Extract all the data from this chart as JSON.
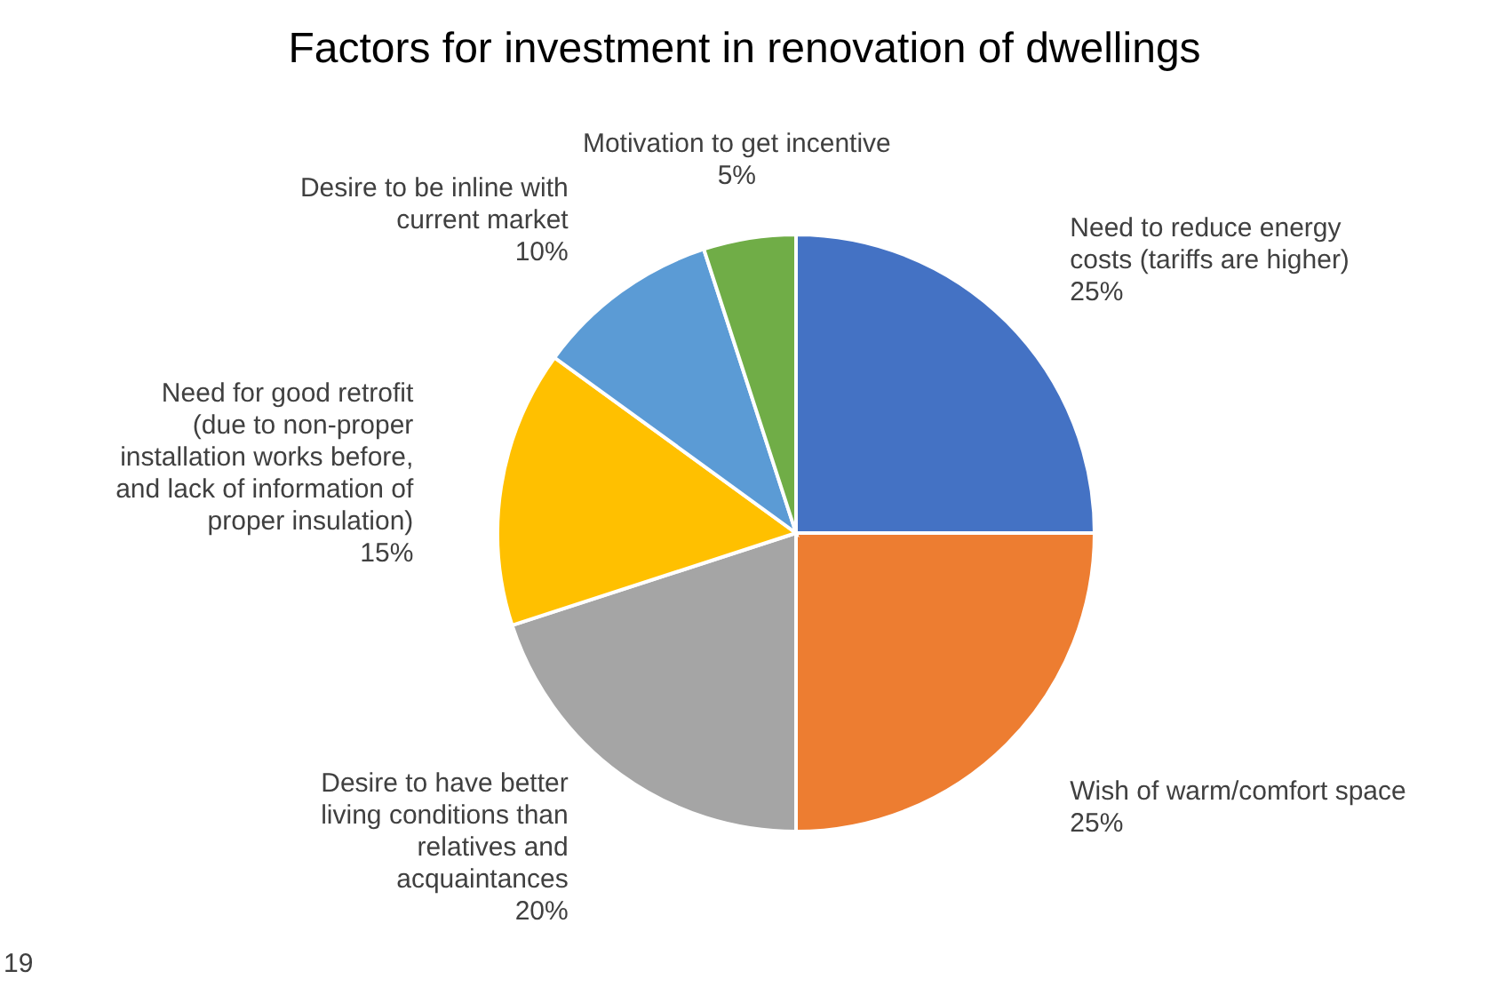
{
  "chart_data": {
    "type": "pie",
    "title": "Factors for investment in renovation of dwellings",
    "categories": [
      "Need to reduce energy costs (tariffs are higher)",
      "Wish of warm/comfort space",
      "Desire to have better living conditions than relatives and acquaintances",
      "Need for good retrofit (due to non-proper installation works before, and lack of information of proper insulation)",
      "Desire to be inline with current market",
      "Motivation to get incentive"
    ],
    "values": [
      25,
      25,
      20,
      15,
      10,
      5
    ],
    "value_labels": [
      "25%",
      "25%",
      "20%",
      "15%",
      "10%",
      "5%"
    ],
    "colors": [
      "#4472c4",
      "#ed7d31",
      "#a5a5a5",
      "#ffc000",
      "#5b9bd5",
      "#70ad47"
    ],
    "annotations": [
      "19"
    ]
  }
}
